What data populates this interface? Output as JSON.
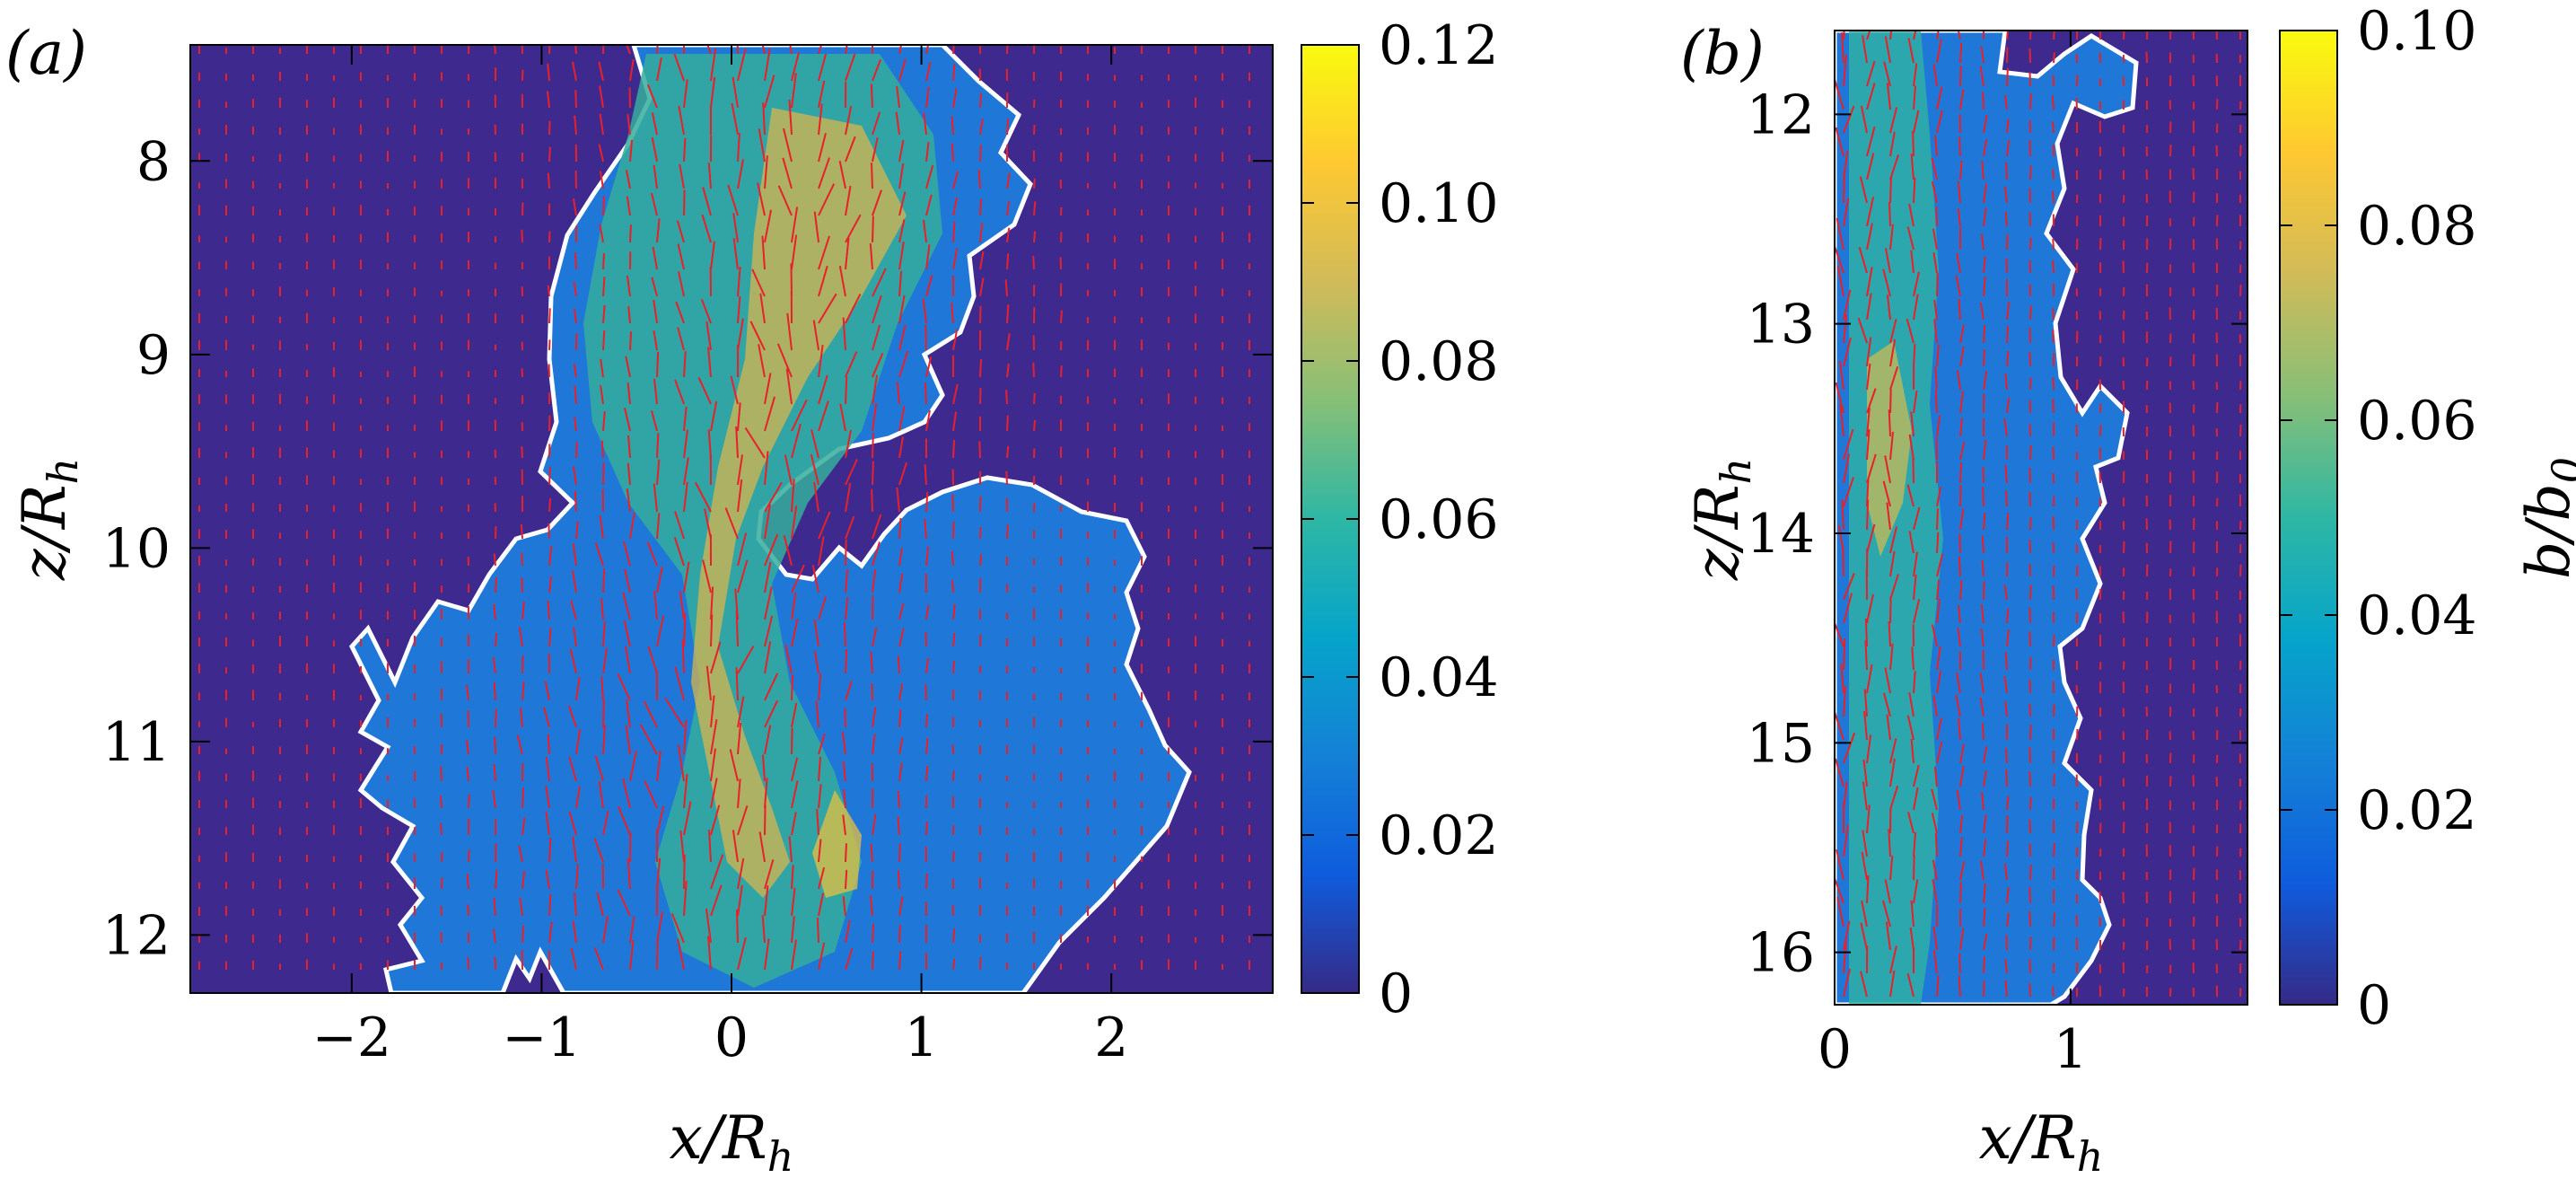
{
  "chart_data": [
    {
      "type": "heatmap",
      "panel_label": "(a)",
      "xlabel": "x/R_h",
      "ylabel": "z/R_h",
      "xlim": [
        -2.85,
        2.85
      ],
      "ylim": [
        12.3,
        7.4
      ],
      "y_axis_direction": "downward",
      "xticks": [
        -2,
        -1,
        0,
        1,
        2
      ],
      "xtick_labels": [
        "−2",
        "−1",
        "0",
        "1",
        "2"
      ],
      "yticks": [
        8,
        9,
        10,
        11,
        12
      ],
      "ytick_labels": [
        "8",
        "9",
        "10",
        "11",
        "12"
      ],
      "colorbar": {
        "range": [
          0,
          0.12
        ],
        "ticks": [
          0,
          0.02,
          0.04,
          0.06,
          0.08,
          0.1,
          0.12
        ],
        "tick_labels": [
          "0",
          "0.02",
          "0.04",
          "0.06",
          "0.08",
          "0.10",
          "0.12"
        ],
        "colormap": "parula"
      },
      "overlay": "red velocity vectors with white plume-boundary contour"
    },
    {
      "type": "heatmap",
      "panel_label": "(b)",
      "xlabel": "x/R_h",
      "ylabel": "z/R_h",
      "xlim": [
        0,
        1.75
      ],
      "ylim": [
        16.25,
        11.6
      ],
      "y_axis_direction": "downward",
      "xticks": [
        0,
        1
      ],
      "xtick_labels": [
        "0",
        "1"
      ],
      "yticks": [
        12,
        13,
        14,
        15,
        16
      ],
      "ytick_labels": [
        "12",
        "13",
        "14",
        "15",
        "16"
      ],
      "colorbar": {
        "range": [
          0,
          0.1
        ],
        "ticks": [
          0,
          0.02,
          0.04,
          0.06,
          0.08,
          0.1
        ],
        "tick_labels": [
          "0",
          "0.02",
          "0.04",
          "0.06",
          "0.08",
          "0.10"
        ],
        "colormap": "parula",
        "label": "b/b_0"
      },
      "overlay": "red velocity vectors with white plume-boundary contour"
    }
  ],
  "colors": {
    "background": "#3e2a8f",
    "vector": "#e8202a",
    "contour": "#ffffff",
    "colormap_stops": [
      "#352a87",
      "#0f5cdd",
      "#1481d6",
      "#06a4ca",
      "#2eb7a4",
      "#87bf77",
      "#d1bb59",
      "#fec832",
      "#f9fb0e"
    ]
  }
}
